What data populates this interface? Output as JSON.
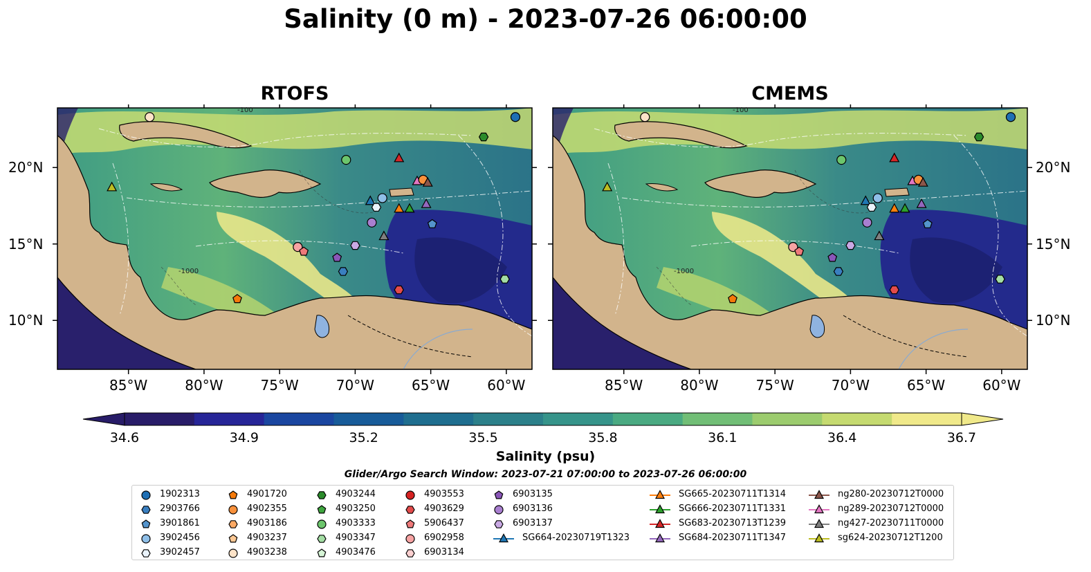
{
  "title": "Salinity (0 m) - 2023-07-26 06:00:00",
  "chart_data": [
    {
      "type": "heatmap",
      "panel": "RTOFS",
      "title": "RTOFS",
      "x_ticks": [
        "85°W",
        "80°W",
        "75°W",
        "70°W",
        "65°W",
        "60°W"
      ],
      "x_tick_values": [
        -85,
        -80,
        -75,
        -70,
        -65,
        -60
      ],
      "y_ticks": [
        "20°N",
        "15°N",
        "10°N"
      ],
      "y_tick_values": [
        20,
        15,
        10
      ],
      "xlim": [
        -89.7,
        -58.3
      ],
      "ylim": [
        6.8,
        23.9
      ],
      "bathymetry_contour_labels": [
        "-1000",
        "-100"
      ],
      "land_color": "#d2b48c",
      "lake_color": "#8fb3e0"
    },
    {
      "type": "heatmap",
      "panel": "CMEMS",
      "title": "CMEMS",
      "x_ticks": [
        "85°W",
        "80°W",
        "75°W",
        "70°W",
        "65°W",
        "60°W"
      ],
      "x_tick_values": [
        -85,
        -80,
        -75,
        -70,
        -65,
        -60
      ],
      "y_ticks": [
        "20°N",
        "15°N",
        "10°N"
      ],
      "y_tick_values": [
        20,
        15,
        10
      ],
      "xlim": [
        -89.7,
        -58.3
      ],
      "ylim": [
        6.8,
        23.9
      ],
      "bathymetry_contour_labels": [
        "-1000",
        "-100"
      ],
      "land_color": "#d2b48c",
      "lake_color": "#8fb3e0"
    }
  ],
  "colorbar": {
    "label": "Salinity (psu)",
    "ticks": [
      "34.6",
      "34.9",
      "35.2",
      "35.5",
      "35.8",
      "36.1",
      "36.4",
      "36.7"
    ],
    "tick_values": [
      34.6,
      34.9,
      35.2,
      35.5,
      35.8,
      36.1,
      36.4,
      36.7
    ],
    "range": [
      34.6,
      36.7
    ],
    "extend": "both",
    "colormap": [
      "#281c68",
      "#262597",
      "#1a46a0",
      "#175b99",
      "#1f6e8f",
      "#2c808a",
      "#36948a",
      "#4aaa82",
      "#71be76",
      "#9ccc6e",
      "#c5da70",
      "#f0e98a"
    ]
  },
  "search_window": "Glider/Argo Search Window: 2023-07-21 07:00:00 to 2023-07-26 06:00:00",
  "legend": {
    "columns": [
      [
        {
          "label": "1902313",
          "marker": "circle",
          "color": "#1f6fb4"
        },
        {
          "label": "2903766",
          "marker": "hexagon",
          "color": "#3a7fc0"
        },
        {
          "label": "3901861",
          "marker": "pentagon",
          "color": "#5494cc"
        },
        {
          "label": "3902456",
          "marker": "circle",
          "color": "#8fbfe8"
        },
        {
          "label": "3902457",
          "marker": "hexagon",
          "color": "#eaf3fb"
        }
      ],
      [
        {
          "label": "4901720",
          "marker": "pentagon",
          "color": "#f57a0a"
        },
        {
          "label": "4902355",
          "marker": "circle",
          "color": "#f9913c"
        },
        {
          "label": "4903186",
          "marker": "hexagon",
          "color": "#fba964"
        },
        {
          "label": "4903237",
          "marker": "pentagon",
          "color": "#fcc894"
        },
        {
          "label": "4903238",
          "marker": "circle",
          "color": "#fde3c8"
        }
      ],
      [
        {
          "label": "4903244",
          "marker": "hexagon",
          "color": "#2b8b2b"
        },
        {
          "label": "4903250",
          "marker": "pentagon",
          "color": "#3fa63f"
        },
        {
          "label": "4903333",
          "marker": "circle",
          "color": "#6cc56c"
        },
        {
          "label": "4903347",
          "marker": "hexagon",
          "color": "#a4dea4"
        },
        {
          "label": "4903476",
          "marker": "pentagon",
          "color": "#d6f4d6"
        }
      ],
      [
        {
          "label": "4903553",
          "marker": "circle",
          "color": "#d62222"
        },
        {
          "label": "4903629",
          "marker": "hexagon",
          "color": "#e34b4b"
        },
        {
          "label": "5906437",
          "marker": "pentagon",
          "color": "#ef7a7a"
        },
        {
          "label": "6902958",
          "marker": "circle",
          "color": "#f7a3a3"
        },
        {
          "label": "6903134",
          "marker": "hexagon",
          "color": "#fbd0d0"
        }
      ],
      [
        {
          "label": "6903135",
          "marker": "pentagon",
          "color": "#8a56b8"
        },
        {
          "label": "6903136",
          "marker": "circle",
          "color": "#a97fd0"
        },
        {
          "label": "6903137",
          "marker": "hexagon",
          "color": "#c9a9e4"
        },
        {
          "label": "SG664-20230719T1323",
          "marker": "triangle",
          "color": "#1f77b4",
          "line": true
        }
      ],
      [
        {
          "label": "SG665-20230711T1314",
          "marker": "triangle",
          "color": "#ff7f0e",
          "line": true
        },
        {
          "label": "SG666-20230711T1331",
          "marker": "triangle",
          "color": "#2ca02c",
          "line": true
        },
        {
          "label": "SG683-20230713T1239",
          "marker": "triangle",
          "color": "#d62728",
          "line": true
        },
        {
          "label": "SG684-20230711T1347",
          "marker": "triangle",
          "color": "#9467bd",
          "line": true
        }
      ],
      [
        {
          "label": "ng280-20230712T0000",
          "marker": "triangle",
          "color": "#8c564b",
          "line": true
        },
        {
          "label": "ng289-20230712T0000",
          "marker": "triangle",
          "color": "#e377c2",
          "line": true
        },
        {
          "label": "ng427-20230711T0000",
          "marker": "triangle",
          "color": "#7f7f7f",
          "line": true
        },
        {
          "label": "sg624-20230712T1200",
          "marker": "triangle",
          "color": "#bcbd22",
          "line": true
        }
      ]
    ]
  },
  "observations": [
    {
      "id": "1902313",
      "lon": -59.4,
      "lat": 23.3,
      "marker": "circle",
      "color": "#1f6fb4"
    },
    {
      "id": "4903244",
      "lon": -61.5,
      "lat": 22.0,
      "marker": "hexagon",
      "color": "#2b8b2b"
    },
    {
      "id": "4903238",
      "lon": -83.6,
      "lat": 23.3,
      "marker": "circle",
      "color": "#fde3c8"
    },
    {
      "id": "4903333",
      "lon": -70.6,
      "lat": 20.5,
      "marker": "circle",
      "color": "#6cc56c"
    },
    {
      "id": "SG683-20230713T1239",
      "lon": -67.1,
      "lat": 20.6,
      "marker": "triangle",
      "color": "#d62728"
    },
    {
      "id": "ng289-20230712T0000",
      "lon": -65.9,
      "lat": 19.1,
      "marker": "triangle",
      "color": "#e377c2"
    },
    {
      "id": "4902355",
      "lon": -65.5,
      "lat": 19.2,
      "marker": "circle",
      "color": "#f9913c"
    },
    {
      "id": "ng280-20230712T0000",
      "lon": -65.2,
      "lat": 19.0,
      "marker": "triangle",
      "color": "#8c564b"
    },
    {
      "id": "sg624-20230712T1200",
      "lon": -86.1,
      "lat": 18.7,
      "marker": "triangle",
      "color": "#bcbd22"
    },
    {
      "id": "SG664-20230719T1323",
      "lon": -69.0,
      "lat": 17.8,
      "marker": "triangle",
      "color": "#1f77b4"
    },
    {
      "id": "3902456",
      "lon": -68.2,
      "lat": 18.0,
      "marker": "circle",
      "color": "#8fbfe8"
    },
    {
      "id": "3902457",
      "lon": -68.6,
      "lat": 17.4,
      "marker": "hexagon",
      "color": "#eaf3fb"
    },
    {
      "id": "SG665-20230711T1314",
      "lon": -67.1,
      "lat": 17.3,
      "marker": "triangle",
      "color": "#ff7f0e"
    },
    {
      "id": "SG666-20230711T1331",
      "lon": -66.4,
      "lat": 17.3,
      "marker": "triangle",
      "color": "#2ca02c"
    },
    {
      "id": "SG684-20230711T1347",
      "lon": -65.3,
      "lat": 17.6,
      "marker": "triangle",
      "color": "#9467bd"
    },
    {
      "id": "3901861",
      "lon": -64.9,
      "lat": 16.3,
      "marker": "pentagon",
      "color": "#5494cc"
    },
    {
      "id": "6903136",
      "lon": -68.9,
      "lat": 16.4,
      "marker": "circle",
      "color": "#a97fd0"
    },
    {
      "id": "ng427-20230711T0000",
      "lon": -68.1,
      "lat": 15.5,
      "marker": "triangle",
      "color": "#7f7f7f"
    },
    {
      "id": "6903137",
      "lon": -70.0,
      "lat": 14.9,
      "marker": "hexagon",
      "color": "#c9a9e4"
    },
    {
      "id": "6902958",
      "lon": -73.8,
      "lat": 14.8,
      "marker": "circle",
      "color": "#f7a3a3"
    },
    {
      "id": "5906437",
      "lon": -73.4,
      "lat": 14.5,
      "marker": "pentagon",
      "color": "#ef7a7a"
    },
    {
      "id": "6903135",
      "lon": -71.2,
      "lat": 14.1,
      "marker": "pentagon",
      "color": "#8a56b8"
    },
    {
      "id": "2903766",
      "lon": -70.8,
      "lat": 13.2,
      "marker": "hexagon",
      "color": "#3a7fc0"
    },
    {
      "id": "4903347",
      "lon": -60.1,
      "lat": 12.7,
      "marker": "hexagon",
      "color": "#a4dea4"
    },
    {
      "id": "4903629",
      "lon": -67.1,
      "lat": 12.0,
      "marker": "hexagon",
      "color": "#e34b4b"
    },
    {
      "id": "4901720",
      "lon": -77.8,
      "lat": 11.4,
      "marker": "pentagon",
      "color": "#f57a0a"
    }
  ]
}
